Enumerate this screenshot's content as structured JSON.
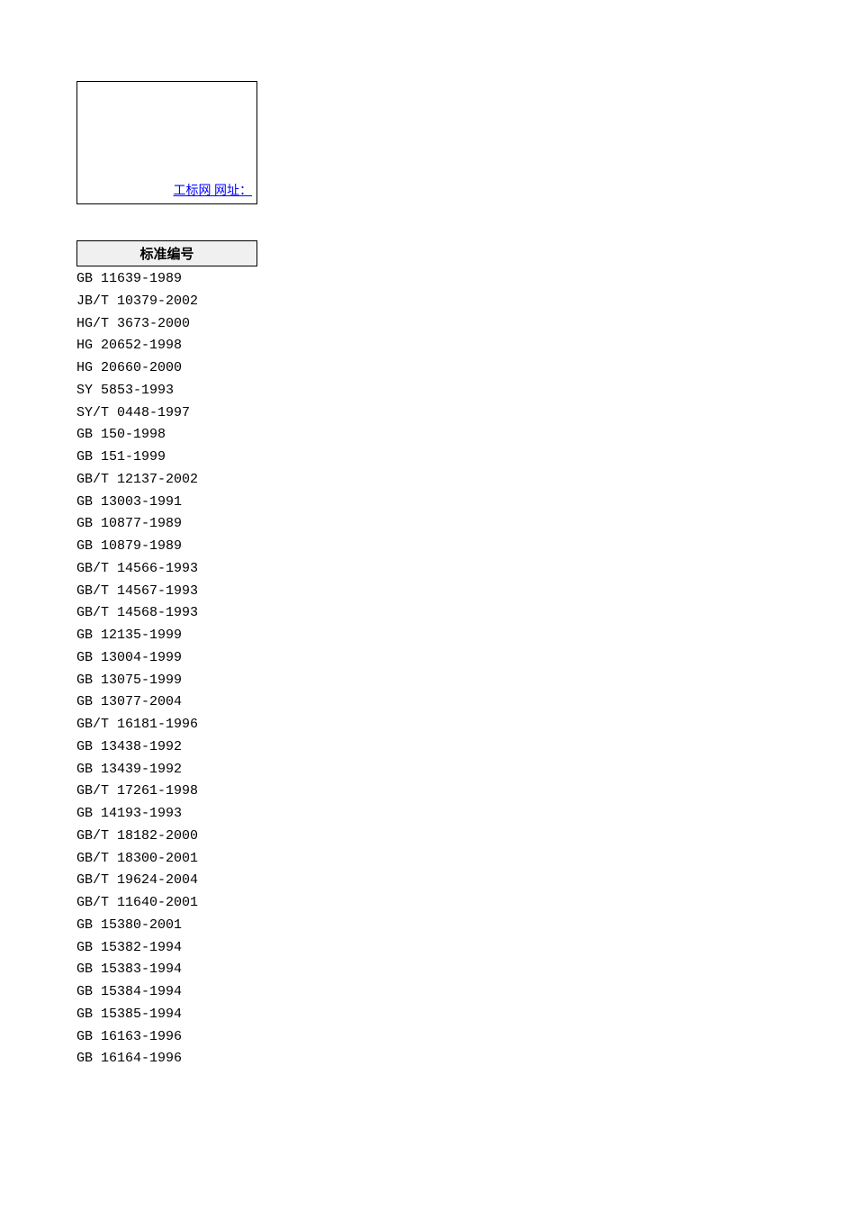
{
  "topBox": {
    "linkText": "工标网  网址："
  },
  "tableHeader": "标准编号",
  "standards": [
    "GB 11639-1989",
    "JB/T 10379-2002",
    "HG/T 3673-2000",
    "HG 20652-1998",
    "HG 20660-2000",
    "SY 5853-1993",
    "SY/T 0448-1997",
    "GB 150-1998",
    "GB 151-1999",
    "GB/T 12137-2002",
    "GB 13003-1991",
    "GB 10877-1989",
    "GB 10879-1989",
    "GB/T 14566-1993",
    "GB/T 14567-1993",
    "GB/T 14568-1993",
    "GB 12135-1999",
    "GB 13004-1999",
    "GB 13075-1999",
    "GB 13077-2004",
    "GB/T 16181-1996",
    "GB 13438-1992",
    "GB 13439-1992",
    "GB/T 17261-1998",
    "GB 14193-1993",
    "GB/T 18182-2000",
    "GB/T 18300-2001",
    "GB/T 19624-2004",
    "GB/T 11640-2001",
    "GB 15380-2001",
    "GB 15382-1994",
    "GB 15383-1994",
    "GB 15384-1994",
    "GB 15385-1994",
    "GB 16163-1996",
    "GB 16164-1996"
  ]
}
